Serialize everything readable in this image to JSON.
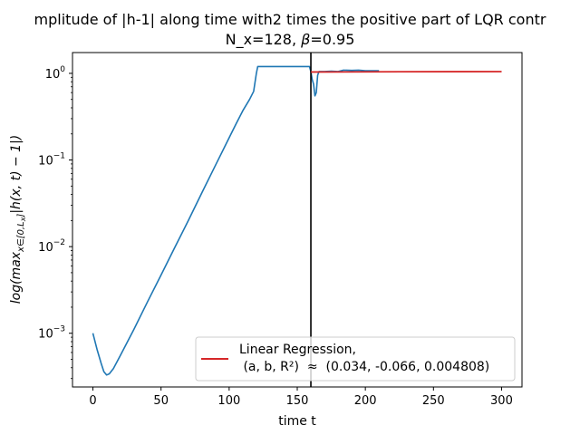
{
  "chart_data": {
    "type": "line",
    "title_line1": "mplitude of |h-1| along time with2 times the positive part of LQR contr",
    "title_line2_prefix": "N_x=128, ",
    "title_line2_beta": "β",
    "title_line2_suffix": "=0.95",
    "xlabel": "time t",
    "ylabel": "log(max_{x∈[0,L_x]}|h(x,t) − 1|)",
    "ylabel_parts": {
      "prefix": "log(max",
      "subscript": "x∈[0,L",
      "subsub": "x",
      "subclose": "]",
      "suffix": "|h(x, t) − 1|)"
    },
    "xlim": [
      -15,
      315
    ],
    "ylim_log10": [
      -3.62,
      0.24
    ],
    "yscale": "log",
    "x_ticks": [
      0,
      50,
      100,
      150,
      200,
      250,
      300
    ],
    "x_tick_labels": [
      "0",
      "50",
      "100",
      "150",
      "200",
      "250",
      "300"
    ],
    "y_ticks_exp": [
      -3,
      -2,
      -1,
      0
    ],
    "y_tick_base": "10",
    "y_tick_exponents": [
      "−3",
      "−2",
      "−1",
      "0"
    ],
    "series": [
      {
        "role": "amplitude",
        "color": "#1f77b4",
        "x": [
          0,
          3,
          6,
          8,
          10,
          12,
          15,
          20,
          30,
          40,
          50,
          60,
          70,
          80,
          90,
          100,
          105,
          110,
          115,
          118,
          120,
          121,
          130,
          140,
          150,
          158,
          159,
          160,
          161,
          162,
          163,
          164,
          165,
          166,
          167,
          168,
          170,
          175,
          180,
          184,
          190,
          195,
          200,
          210
        ],
        "y": [
          0.001,
          0.00065,
          0.00045,
          0.00036,
          0.00033,
          0.00034,
          0.00039,
          0.00055,
          0.0011,
          0.0023,
          0.0047,
          0.0097,
          0.02,
          0.042,
          0.087,
          0.18,
          0.26,
          0.37,
          0.5,
          0.62,
          1.0,
          1.2,
          1.2,
          1.2,
          1.2,
          1.2,
          1.2,
          1.05,
          0.85,
          0.75,
          0.55,
          0.6,
          0.95,
          1.05,
          1.05,
          1.05,
          1.05,
          1.06,
          1.05,
          1.09,
          1.08,
          1.09,
          1.07,
          1.07
        ]
      },
      {
        "name": "Linear Regression,\n (a, b, R²) ≈ (0.034, -0.066, 0.004808)",
        "color": "#d62728",
        "x": [
          160,
          300
        ],
        "y": [
          1.038,
          1.048
        ]
      }
    ],
    "vline": {
      "x": 160,
      "color": "#000000"
    },
    "legend": {
      "placement": "lower-right",
      "line1": "Linear Regression,",
      "line2": " (a, b, R²)  ≈  (0.034, -0.066, 0.004808)"
    },
    "grid": false
  }
}
